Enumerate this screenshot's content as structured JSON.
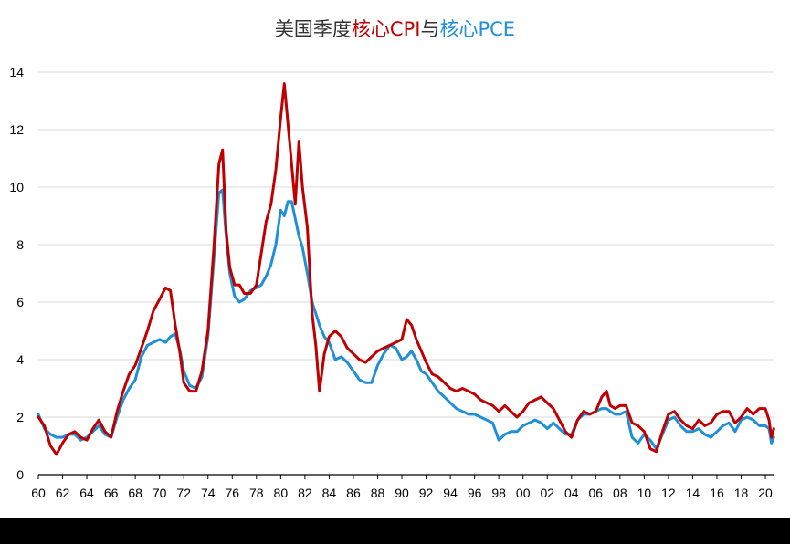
{
  "chart_data": {
    "type": "line",
    "title_parts": [
      {
        "text": "美国季度",
        "color": "#333333"
      },
      {
        "text": "核心CPI",
        "color": "#c00000"
      },
      {
        "text": "与",
        "color": "#333333"
      },
      {
        "text": "核心PCE",
        "color": "#1e8fd8"
      }
    ],
    "xlabel": "",
    "ylabel": "",
    "ylim": [
      0,
      14
    ],
    "yticks": [
      0,
      2,
      4,
      6,
      8,
      10,
      12,
      14
    ],
    "xlim": [
      1960,
      2020.75
    ],
    "xtick_values": [
      1960,
      1962,
      1964,
      1966,
      1968,
      1970,
      1972,
      1974,
      1976,
      1978,
      1980,
      1982,
      1984,
      1986,
      1988,
      1990,
      1992,
      1994,
      1996,
      1998,
      2000,
      2002,
      2004,
      2006,
      2008,
      2010,
      2012,
      2014,
      2016,
      2018,
      2020
    ],
    "xtick_labels": [
      "60",
      "62",
      "64",
      "66",
      "68",
      "70",
      "72",
      "74",
      "76",
      "78",
      "80",
      "82",
      "84",
      "86",
      "88",
      "90",
      "92",
      "94",
      "96",
      "98",
      "00",
      "02",
      "04",
      "06",
      "08",
      "10",
      "12",
      "14",
      "16",
      "18",
      "20"
    ],
    "grid": "horizontal",
    "legend": "none",
    "series": [
      {
        "key": "core-cpi",
        "color": "#c00000",
        "points": [
          [
            1960.0,
            2.0
          ],
          [
            1960.5,
            1.7
          ],
          [
            1961.0,
            1.0
          ],
          [
            1961.5,
            0.7
          ],
          [
            1962.0,
            1.1
          ],
          [
            1962.5,
            1.4
          ],
          [
            1963.0,
            1.5
          ],
          [
            1963.5,
            1.3
          ],
          [
            1964.0,
            1.2
          ],
          [
            1964.5,
            1.6
          ],
          [
            1965.0,
            1.9
          ],
          [
            1965.5,
            1.5
          ],
          [
            1966.0,
            1.3
          ],
          [
            1966.5,
            2.2
          ],
          [
            1967.0,
            2.9
          ],
          [
            1967.5,
            3.5
          ],
          [
            1968.0,
            3.8
          ],
          [
            1968.5,
            4.4
          ],
          [
            1969.0,
            5.0
          ],
          [
            1969.5,
            5.7
          ],
          [
            1970.0,
            6.1
          ],
          [
            1970.5,
            6.5
          ],
          [
            1970.9,
            6.4
          ],
          [
            1971.3,
            5.2
          ],
          [
            1971.7,
            4.2
          ],
          [
            1972.0,
            3.2
          ],
          [
            1972.5,
            2.9
          ],
          [
            1973.0,
            2.9
          ],
          [
            1973.5,
            3.6
          ],
          [
            1974.0,
            5.0
          ],
          [
            1974.5,
            8.0
          ],
          [
            1974.9,
            10.8
          ],
          [
            1975.2,
            11.3
          ],
          [
            1975.5,
            8.5
          ],
          [
            1975.8,
            7.2
          ],
          [
            1976.2,
            6.6
          ],
          [
            1976.6,
            6.6
          ],
          [
            1977.0,
            6.3
          ],
          [
            1977.5,
            6.3
          ],
          [
            1978.0,
            6.6
          ],
          [
            1978.4,
            7.7
          ],
          [
            1978.8,
            8.8
          ],
          [
            1979.2,
            9.4
          ],
          [
            1979.6,
            10.6
          ],
          [
            1980.0,
            12.4
          ],
          [
            1980.3,
            13.6
          ],
          [
            1980.6,
            12.2
          ],
          [
            1980.9,
            10.8
          ],
          [
            1981.2,
            9.4
          ],
          [
            1981.5,
            11.6
          ],
          [
            1981.8,
            10.0
          ],
          [
            1982.2,
            8.6
          ],
          [
            1982.6,
            5.6
          ],
          [
            1982.9,
            4.5
          ],
          [
            1983.2,
            2.9
          ],
          [
            1983.6,
            4.2
          ],
          [
            1984.0,
            4.8
          ],
          [
            1984.5,
            5.0
          ],
          [
            1985.0,
            4.8
          ],
          [
            1985.5,
            4.4
          ],
          [
            1986.0,
            4.2
          ],
          [
            1986.5,
            4.0
          ],
          [
            1987.0,
            3.9
          ],
          [
            1987.5,
            4.1
          ],
          [
            1988.0,
            4.3
          ],
          [
            1988.5,
            4.4
          ],
          [
            1989.0,
            4.5
          ],
          [
            1989.5,
            4.6
          ],
          [
            1990.0,
            4.7
          ],
          [
            1990.4,
            5.4
          ],
          [
            1990.8,
            5.2
          ],
          [
            1991.2,
            4.7
          ],
          [
            1991.6,
            4.3
          ],
          [
            1992.0,
            3.9
          ],
          [
            1992.5,
            3.5
          ],
          [
            1993.0,
            3.4
          ],
          [
            1993.5,
            3.2
          ],
          [
            1994.0,
            3.0
          ],
          [
            1994.5,
            2.9
          ],
          [
            1995.0,
            3.0
          ],
          [
            1995.5,
            2.9
          ],
          [
            1996.0,
            2.8
          ],
          [
            1996.5,
            2.6
          ],
          [
            1997.0,
            2.5
          ],
          [
            1997.5,
            2.4
          ],
          [
            1998.0,
            2.2
          ],
          [
            1998.5,
            2.4
          ],
          [
            1999.0,
            2.2
          ],
          [
            1999.5,
            2.0
          ],
          [
            2000.0,
            2.2
          ],
          [
            2000.5,
            2.5
          ],
          [
            2001.0,
            2.6
          ],
          [
            2001.5,
            2.7
          ],
          [
            2002.0,
            2.5
          ],
          [
            2002.5,
            2.3
          ],
          [
            2003.0,
            1.9
          ],
          [
            2003.5,
            1.5
          ],
          [
            2004.0,
            1.3
          ],
          [
            2004.5,
            1.9
          ],
          [
            2005.0,
            2.2
          ],
          [
            2005.5,
            2.1
          ],
          [
            2006.0,
            2.2
          ],
          [
            2006.5,
            2.7
          ],
          [
            2006.9,
            2.9
          ],
          [
            2007.2,
            2.4
          ],
          [
            2007.6,
            2.3
          ],
          [
            2008.0,
            2.4
          ],
          [
            2008.5,
            2.4
          ],
          [
            2009.0,
            1.8
          ],
          [
            2009.5,
            1.7
          ],
          [
            2010.0,
            1.5
          ],
          [
            2010.5,
            0.9
          ],
          [
            2011.0,
            0.8
          ],
          [
            2011.5,
            1.5
          ],
          [
            2012.0,
            2.1
          ],
          [
            2012.5,
            2.2
          ],
          [
            2013.0,
            1.9
          ],
          [
            2013.5,
            1.7
          ],
          [
            2014.0,
            1.6
          ],
          [
            2014.5,
            1.9
          ],
          [
            2015.0,
            1.7
          ],
          [
            2015.5,
            1.8
          ],
          [
            2016.0,
            2.1
          ],
          [
            2016.5,
            2.2
          ],
          [
            2017.0,
            2.2
          ],
          [
            2017.5,
            1.8
          ],
          [
            2018.0,
            2.0
          ],
          [
            2018.5,
            2.3
          ],
          [
            2019.0,
            2.1
          ],
          [
            2019.5,
            2.3
          ],
          [
            2020.0,
            2.3
          ],
          [
            2020.3,
            1.9
          ],
          [
            2020.5,
            1.3
          ],
          [
            2020.7,
            1.6
          ]
        ]
      },
      {
        "key": "core-pce",
        "color": "#1e8fd8",
        "points": [
          [
            1960.0,
            2.1
          ],
          [
            1960.5,
            1.6
          ],
          [
            1961.0,
            1.4
          ],
          [
            1961.5,
            1.3
          ],
          [
            1962.0,
            1.3
          ],
          [
            1962.5,
            1.4
          ],
          [
            1963.0,
            1.4
          ],
          [
            1963.5,
            1.2
          ],
          [
            1964.0,
            1.3
          ],
          [
            1964.5,
            1.5
          ],
          [
            1965.0,
            1.7
          ],
          [
            1965.5,
            1.4
          ],
          [
            1966.0,
            1.3
          ],
          [
            1966.5,
            2.0
          ],
          [
            1967.0,
            2.6
          ],
          [
            1967.5,
            3.0
          ],
          [
            1968.0,
            3.3
          ],
          [
            1968.5,
            4.1
          ],
          [
            1969.0,
            4.5
          ],
          [
            1969.5,
            4.6
          ],
          [
            1970.0,
            4.7
          ],
          [
            1970.5,
            4.6
          ],
          [
            1970.9,
            4.8
          ],
          [
            1971.3,
            4.9
          ],
          [
            1971.7,
            4.3
          ],
          [
            1972.0,
            3.6
          ],
          [
            1972.5,
            3.1
          ],
          [
            1973.0,
            3.0
          ],
          [
            1973.5,
            3.4
          ],
          [
            1974.0,
            4.8
          ],
          [
            1974.5,
            7.6
          ],
          [
            1974.9,
            9.8
          ],
          [
            1975.2,
            9.9
          ],
          [
            1975.5,
            8.3
          ],
          [
            1975.8,
            7.0
          ],
          [
            1976.2,
            6.2
          ],
          [
            1976.6,
            6.0
          ],
          [
            1977.0,
            6.1
          ],
          [
            1977.5,
            6.4
          ],
          [
            1978.0,
            6.5
          ],
          [
            1978.4,
            6.6
          ],
          [
            1978.8,
            6.9
          ],
          [
            1979.2,
            7.3
          ],
          [
            1979.6,
            8.0
          ],
          [
            1980.0,
            9.2
          ],
          [
            1980.3,
            9.0
          ],
          [
            1980.6,
            9.5
          ],
          [
            1980.9,
            9.5
          ],
          [
            1981.2,
            8.9
          ],
          [
            1981.5,
            8.3
          ],
          [
            1981.8,
            7.9
          ],
          [
            1982.2,
            7.0
          ],
          [
            1982.6,
            6.0
          ],
          [
            1982.9,
            5.6
          ],
          [
            1983.2,
            5.2
          ],
          [
            1983.6,
            4.8
          ],
          [
            1984.0,
            4.6
          ],
          [
            1984.5,
            4.0
          ],
          [
            1985.0,
            4.1
          ],
          [
            1985.5,
            3.9
          ],
          [
            1986.0,
            3.6
          ],
          [
            1986.5,
            3.3
          ],
          [
            1987.0,
            3.2
          ],
          [
            1987.5,
            3.2
          ],
          [
            1988.0,
            3.8
          ],
          [
            1988.5,
            4.2
          ],
          [
            1989.0,
            4.5
          ],
          [
            1989.5,
            4.4
          ],
          [
            1990.0,
            4.0
          ],
          [
            1990.4,
            4.1
          ],
          [
            1990.8,
            4.3
          ],
          [
            1991.2,
            4.0
          ],
          [
            1991.6,
            3.6
          ],
          [
            1992.0,
            3.5
          ],
          [
            1992.5,
            3.2
          ],
          [
            1993.0,
            2.9
          ],
          [
            1993.5,
            2.7
          ],
          [
            1994.0,
            2.5
          ],
          [
            1994.5,
            2.3
          ],
          [
            1995.0,
            2.2
          ],
          [
            1995.5,
            2.1
          ],
          [
            1996.0,
            2.1
          ],
          [
            1996.5,
            2.0
          ],
          [
            1997.0,
            1.9
          ],
          [
            1997.5,
            1.8
          ],
          [
            1998.0,
            1.2
          ],
          [
            1998.5,
            1.4
          ],
          [
            1999.0,
            1.5
          ],
          [
            1999.5,
            1.5
          ],
          [
            2000.0,
            1.7
          ],
          [
            2000.5,
            1.8
          ],
          [
            2001.0,
            1.9
          ],
          [
            2001.5,
            1.8
          ],
          [
            2002.0,
            1.6
          ],
          [
            2002.5,
            1.8
          ],
          [
            2003.0,
            1.6
          ],
          [
            2003.5,
            1.4
          ],
          [
            2004.0,
            1.4
          ],
          [
            2004.5,
            1.9
          ],
          [
            2005.0,
            2.1
          ],
          [
            2005.5,
            2.1
          ],
          [
            2006.0,
            2.2
          ],
          [
            2006.5,
            2.3
          ],
          [
            2006.9,
            2.3
          ],
          [
            2007.2,
            2.2
          ],
          [
            2007.6,
            2.1
          ],
          [
            2008.0,
            2.1
          ],
          [
            2008.5,
            2.2
          ],
          [
            2009.0,
            1.3
          ],
          [
            2009.5,
            1.1
          ],
          [
            2010.0,
            1.4
          ],
          [
            2010.5,
            1.2
          ],
          [
            2011.0,
            0.9
          ],
          [
            2011.5,
            1.4
          ],
          [
            2012.0,
            1.9
          ],
          [
            2012.5,
            2.0
          ],
          [
            2013.0,
            1.7
          ],
          [
            2013.5,
            1.5
          ],
          [
            2014.0,
            1.5
          ],
          [
            2014.5,
            1.6
          ],
          [
            2015.0,
            1.4
          ],
          [
            2015.5,
            1.3
          ],
          [
            2016.0,
            1.5
          ],
          [
            2016.5,
            1.7
          ],
          [
            2017.0,
            1.8
          ],
          [
            2017.5,
            1.5
          ],
          [
            2018.0,
            1.9
          ],
          [
            2018.5,
            2.0
          ],
          [
            2019.0,
            1.9
          ],
          [
            2019.5,
            1.7
          ],
          [
            2020.0,
            1.7
          ],
          [
            2020.3,
            1.6
          ],
          [
            2020.5,
            1.1
          ],
          [
            2020.7,
            1.3
          ]
        ]
      }
    ]
  }
}
